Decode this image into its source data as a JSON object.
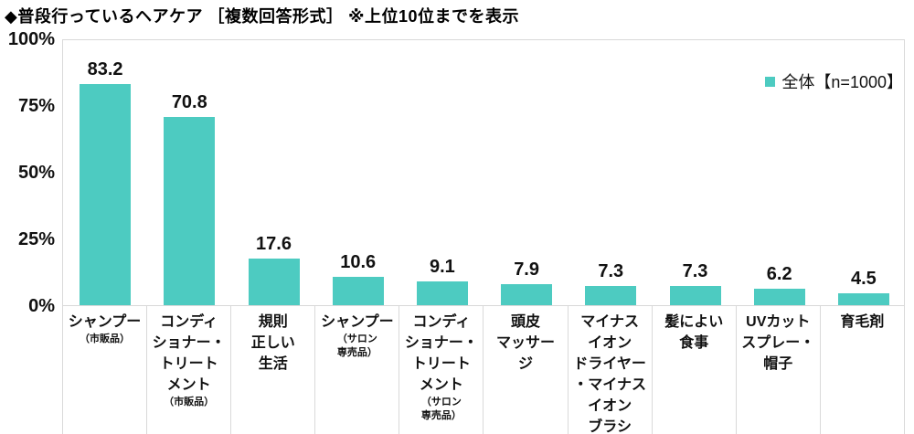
{
  "chart_data": {
    "type": "bar",
    "title": "◆普段行っているヘアケア ［複数回答形式］ ※上位10位までを表示",
    "legend": "全体【n=1000】",
    "legend_position": "top-right",
    "bar_color": "#4DCBC1",
    "axis_color": "#d9d9d9",
    "grid": false,
    "ylim": [
      0,
      100
    ],
    "ytick_labels": [
      "100%",
      "75%",
      "50%",
      "25%",
      "0%"
    ],
    "ytick_values": [
      100,
      75,
      50,
      25,
      0
    ],
    "values": [
      83.2,
      70.8,
      17.6,
      10.6,
      9.1,
      7.9,
      7.3,
      7.3,
      6.2,
      4.5
    ],
    "categories": [
      {
        "main": "シャンプー",
        "sub": "（市販品）"
      },
      {
        "main": "コンディ\nショナー・\nトリート\nメント",
        "sub": "（市販品）"
      },
      {
        "main": "規則\n正しい\n生活",
        "sub": ""
      },
      {
        "main": "シャンプー",
        "sub": "（サロン\n専売品）"
      },
      {
        "main": "コンディ\nショナー・\nトリート\nメント",
        "sub": "（サロン\n専売品）"
      },
      {
        "main": "頭皮\nマッサー\nジ",
        "sub": ""
      },
      {
        "main": "マイナス\nイオン\nドライヤー\n・マイナス\nイオン\nブラシ",
        "sub": ""
      },
      {
        "main": "髪によい\n食事",
        "sub": ""
      },
      {
        "main": "UVカット\nスプレー・\n帽子",
        "sub": ""
      },
      {
        "main": "育毛剤",
        "sub": ""
      }
    ]
  }
}
